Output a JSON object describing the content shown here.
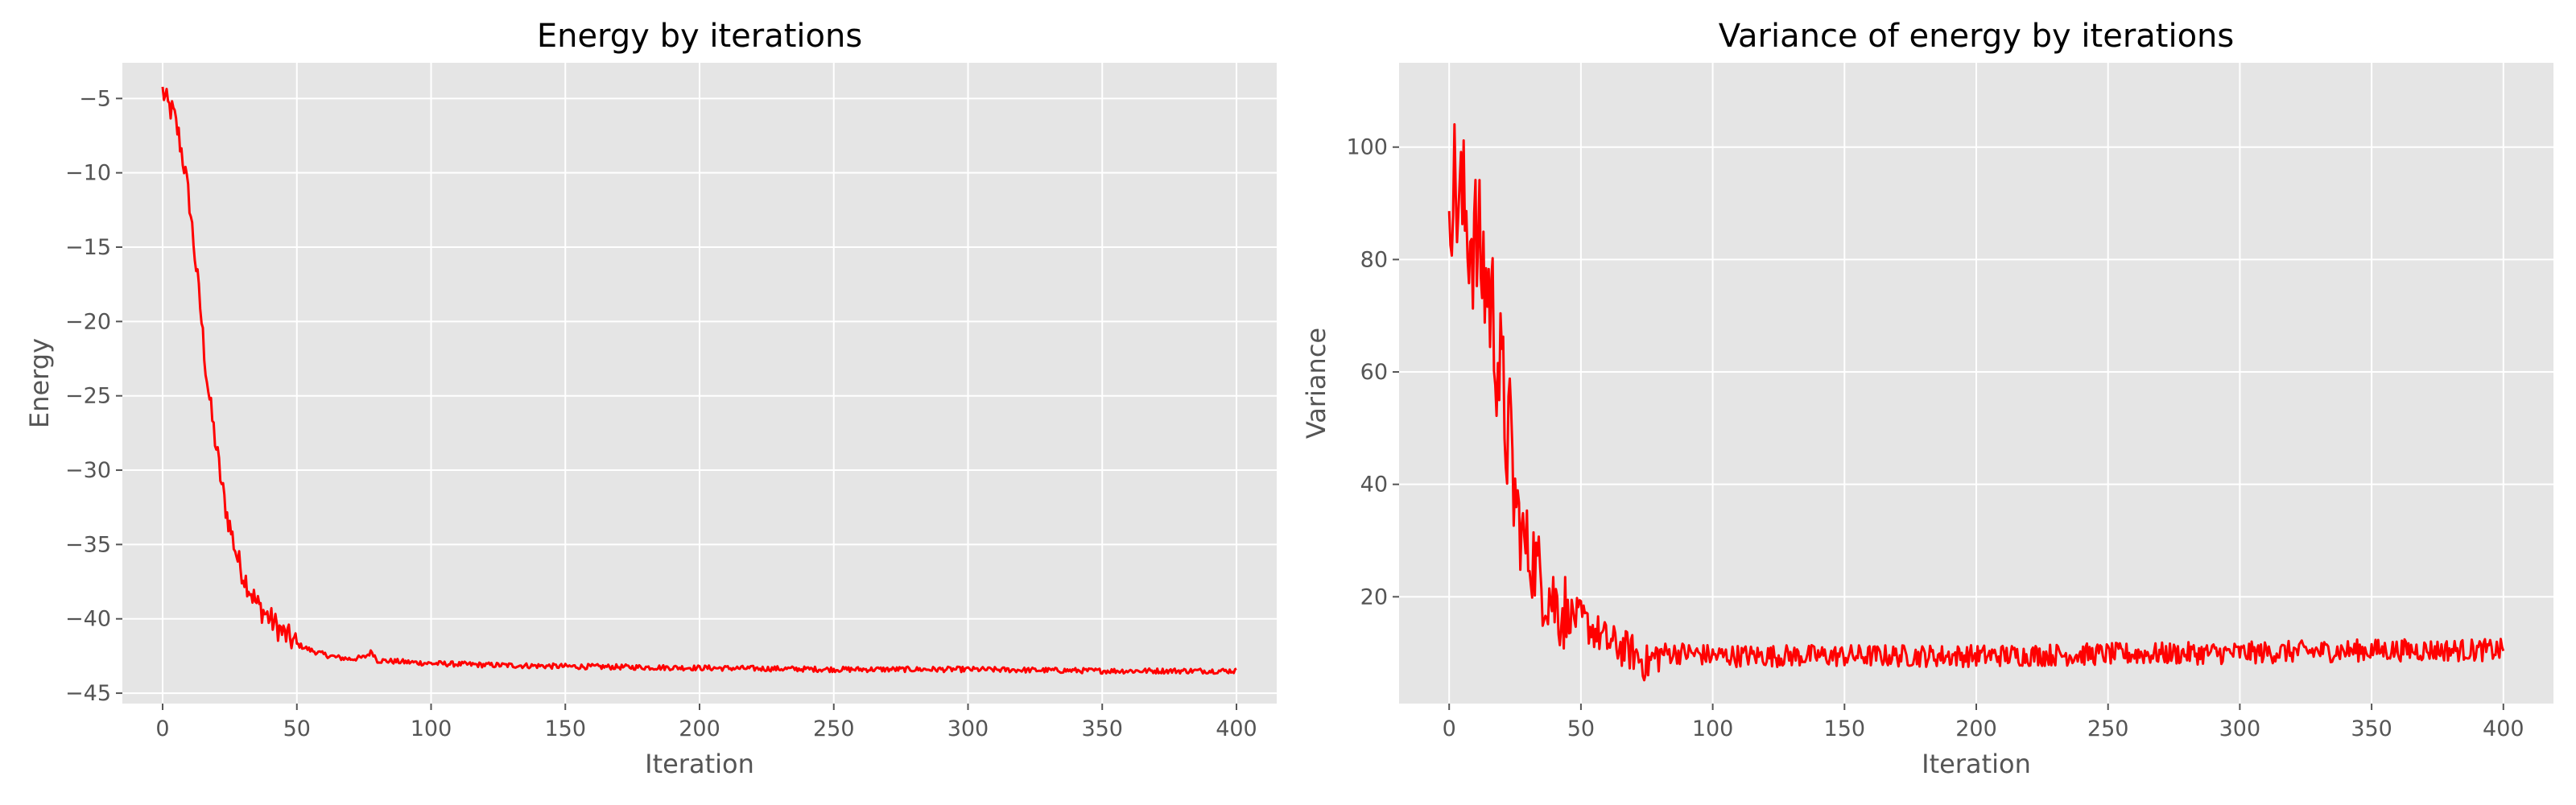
{
  "chart_data": [
    {
      "type": "line",
      "title": "Energy by iterations",
      "xlabel": "Iteration",
      "ylabel": "Energy",
      "xlim": [
        -15,
        415
      ],
      "ylim": [
        -45.7,
        -2.6
      ],
      "xticks": [
        0,
        50,
        100,
        150,
        200,
        250,
        300,
        350,
        400
      ],
      "yticks": [
        -45,
        -40,
        -35,
        -30,
        -25,
        -20,
        -15,
        -10,
        -5
      ],
      "grid": true,
      "color": "#ff0000",
      "series": [
        {
          "x": [
            0,
            2,
            4,
            6,
            8,
            10,
            12,
            14,
            16,
            18,
            20,
            22,
            24,
            26,
            28,
            30,
            35,
            40,
            45,
            50,
            55,
            60,
            65,
            70,
            75,
            78,
            80,
            90,
            100,
            120,
            150,
            200,
            250,
            300,
            350,
            400
          ],
          "y": [
            -4.5,
            -5.5,
            -6.0,
            -7.5,
            -9.5,
            -12.0,
            -15.5,
            -19.0,
            -23.0,
            -26.0,
            -28.5,
            -31.0,
            -33.0,
            -34.5,
            -36.0,
            -37.0,
            -39.0,
            -40.0,
            -41.0,
            -41.7,
            -42.1,
            -42.4,
            -42.6,
            -42.7,
            -42.6,
            -42.2,
            -42.8,
            -42.9,
            -43.0,
            -43.1,
            -43.2,
            -43.3,
            -43.4,
            -43.4,
            -43.5,
            -43.5
          ]
        }
      ]
    },
    {
      "type": "line",
      "title": "Variance of energy by iterations",
      "xlabel": "Iteration",
      "ylabel": "Variance",
      "xlim": [
        -19,
        419
      ],
      "ylim": [
        1.0,
        115.0
      ],
      "xticks": [
        0,
        50,
        100,
        150,
        200,
        250,
        300,
        350,
        400
      ],
      "yticks": [
        20,
        40,
        60,
        80,
        100
      ],
      "grid": true,
      "color": "#ff0000",
      "series": [
        {
          "x": [
            0,
            2,
            4,
            6,
            8,
            10,
            12,
            14,
            16,
            18,
            20,
            22,
            24,
            26,
            28,
            30,
            32,
            34,
            36,
            38,
            40,
            45,
            50,
            55,
            60,
            65,
            70,
            75,
            80,
            90,
            100,
            150,
            200,
            250,
            300,
            350,
            400
          ],
          "y": [
            95,
            93,
            90,
            88,
            85,
            83,
            80,
            76,
            72,
            65,
            56,
            50,
            42,
            35,
            30,
            28,
            27,
            24,
            22,
            21,
            19,
            17,
            16,
            14,
            12,
            11,
            10,
            8,
            10,
            10,
            9.5,
            9.5,
            9.5,
            9.8,
            10.0,
            10.5,
            10.5
          ]
        }
      ]
    }
  ]
}
